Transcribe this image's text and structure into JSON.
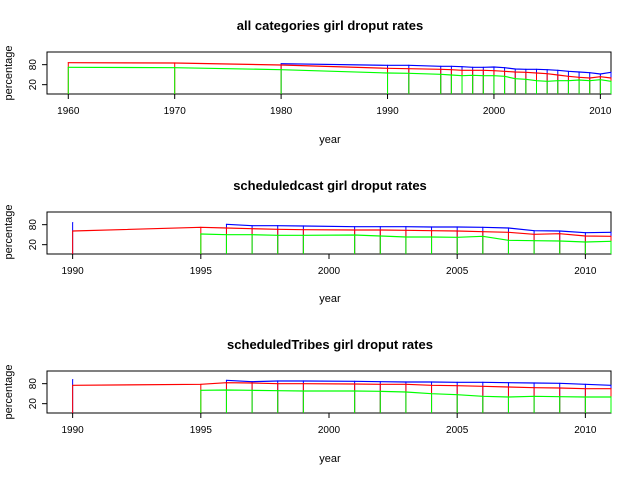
{
  "charts": [
    {
      "title": "all categories girl droput rates",
      "xlabel": "year",
      "ylabel": "percentage",
      "xlim": [
        1958,
        2011
      ],
      "ylim": [
        10,
        100
      ],
      "xticks": [
        "1960",
        "1970",
        "1980",
        "1990",
        "2000",
        "2010"
      ],
      "yticks": [
        "20",
        "80"
      ],
      "x": [
        1960,
        1970,
        1980,
        1990,
        1992,
        1995,
        1996,
        1997,
        1998,
        1999,
        2000,
        2001,
        2002,
        2003,
        2004,
        2005,
        2006,
        2007,
        2008,
        2009,
        2010,
        2011
      ],
      "series": [
        {
          "color": "#0000ff",
          "values": [
            null,
            null,
            83,
            78,
            78,
            75,
            75,
            74,
            72,
            72,
            73,
            71,
            67,
            66,
            66,
            65,
            63,
            60,
            58,
            56,
            52,
            57
          ]
        },
        {
          "color": "#ff0000",
          "values": [
            86,
            85,
            79,
            69,
            68,
            66,
            65,
            63,
            63,
            63,
            62,
            60,
            58,
            57,
            55,
            53,
            49,
            45,
            42,
            40,
            44,
            40
          ]
        },
        {
          "color": "#00ff00",
          "values": [
            72,
            71,
            65,
            55,
            54,
            51,
            49,
            47,
            48,
            47,
            47,
            45,
            38,
            36,
            32,
            30,
            32,
            32,
            34,
            32,
            35,
            30
          ]
        }
      ]
    },
    {
      "title": "scheduledcast girl droput rates",
      "xlabel": "year",
      "ylabel": "percentage",
      "xlim": [
        1989,
        2011
      ],
      "ylim": [
        10,
        100
      ],
      "xticks": [
        "1990",
        "1995",
        "2000",
        "2005",
        "2010"
      ],
      "yticks": [
        "20",
        "80"
      ],
      "x": [
        1990,
        1995,
        1996,
        1997,
        1998,
        1999,
        2001,
        2002,
        2003,
        2004,
        2005,
        2006,
        2007,
        2008,
        2009,
        2010,
        2011
      ],
      "series": [
        {
          "color": "#0000ff",
          "values": [
            86,
            null,
            81,
            77,
            77,
            76,
            74,
            74,
            74,
            73,
            73,
            72,
            70,
            62,
            61,
            56,
            57
          ]
        },
        {
          "color": "#ff0000",
          "values": [
            61,
            72,
            70,
            68,
            66,
            65,
            64,
            64,
            63,
            62,
            61,
            59,
            57,
            51,
            53,
            46,
            45
          ]
        },
        {
          "color": "#00ff00",
          "values": [
            null,
            52,
            50,
            50,
            48,
            48,
            49,
            46,
            43,
            43,
            42,
            45,
            33,
            32,
            31,
            28,
            30
          ]
        }
      ]
    },
    {
      "title": "scheduledTribes girl droput rates",
      "xlabel": "year",
      "ylabel": "percentage",
      "xlim": [
        1989,
        2011
      ],
      "ylim": [
        10,
        100
      ],
      "xticks": [
        "1990",
        "1995",
        "2000",
        "2005",
        "2010"
      ],
      "yticks": [
        "20",
        "80"
      ],
      "x": [
        1990,
        1995,
        1996,
        1997,
        1998,
        1999,
        2001,
        2002,
        2003,
        2004,
        2005,
        2006,
        2007,
        2008,
        2009,
        2010,
        2011
      ],
      "series": [
        {
          "color": "#0000ff",
          "values": [
            92,
            null,
            90,
            86,
            88,
            88,
            87,
            86,
            85,
            85,
            84,
            84,
            83,
            82,
            81,
            78,
            75
          ]
        },
        {
          "color": "#ff0000",
          "values": [
            75,
            78,
            83,
            82,
            80,
            80,
            79,
            78,
            78,
            75,
            74,
            72,
            70,
            68,
            67,
            65,
            65
          ]
        },
        {
          "color": "#00ff00",
          "values": [
            null,
            60,
            61,
            60,
            59,
            58,
            58,
            57,
            55,
            50,
            47,
            42,
            40,
            42,
            41,
            40,
            40
          ]
        }
      ]
    }
  ],
  "chart_data": [
    {
      "type": "line",
      "title": "all categories girl droput rates",
      "xlabel": "year",
      "ylabel": "percentage",
      "xlim": [
        1958,
        2011
      ],
      "ylim": [
        10,
        100
      ],
      "x": [
        1960,
        1970,
        1980,
        1990,
        1992,
        1995,
        1996,
        1997,
        1998,
        1999,
        2000,
        2001,
        2002,
        2003,
        2004,
        2005,
        2006,
        2007,
        2008,
        2009,
        2010,
        2011
      ],
      "series": [
        {
          "color": "#0000ff",
          "values": [
            null,
            null,
            83,
            78,
            78,
            75,
            75,
            74,
            72,
            72,
            73,
            71,
            67,
            66,
            66,
            65,
            63,
            60,
            58,
            56,
            52,
            57
          ]
        },
        {
          "color": "#ff0000",
          "values": [
            86,
            85,
            79,
            69,
            68,
            66,
            65,
            63,
            63,
            63,
            62,
            60,
            58,
            57,
            55,
            53,
            49,
            45,
            42,
            40,
            44,
            40
          ]
        },
        {
          "color": "#00ff00",
          "values": [
            72,
            71,
            65,
            55,
            54,
            51,
            49,
            47,
            48,
            47,
            47,
            45,
            38,
            36,
            32,
            30,
            32,
            32,
            34,
            32,
            35,
            30
          ]
        }
      ]
    },
    {
      "type": "line",
      "title": "scheduledcast girl droput rates",
      "xlabel": "year",
      "ylabel": "percentage",
      "xlim": [
        1989,
        2011
      ],
      "ylim": [
        10,
        100
      ],
      "x": [
        1990,
        1995,
        1996,
        1997,
        1998,
        1999,
        2001,
        2002,
        2003,
        2004,
        2005,
        2006,
        2007,
        2008,
        2009,
        2010,
        2011
      ],
      "series": [
        {
          "color": "#0000ff",
          "values": [
            86,
            null,
            81,
            77,
            77,
            76,
            74,
            74,
            74,
            73,
            73,
            72,
            70,
            62,
            61,
            56,
            57
          ]
        },
        {
          "color": "#ff0000",
          "values": [
            61,
            72,
            70,
            68,
            66,
            65,
            64,
            64,
            63,
            62,
            61,
            59,
            57,
            51,
            53,
            46,
            45
          ]
        },
        {
          "color": "#00ff00",
          "values": [
            null,
            52,
            50,
            50,
            48,
            48,
            49,
            46,
            43,
            43,
            42,
            45,
            33,
            32,
            31,
            28,
            30
          ]
        }
      ]
    },
    {
      "type": "line",
      "title": "scheduledTribes girl droput rates",
      "xlabel": "year",
      "ylabel": "percentage",
      "xlim": [
        1989,
        2011
      ],
      "ylim": [
        10,
        100
      ],
      "x": [
        1990,
        1995,
        1996,
        1997,
        1998,
        1999,
        2001,
        2002,
        2003,
        2004,
        2005,
        2006,
        2007,
        2008,
        2009,
        2010,
        2011
      ],
      "series": [
        {
          "color": "#0000ff",
          "values": [
            92,
            null,
            90,
            86,
            88,
            88,
            87,
            86,
            85,
            85,
            84,
            84,
            83,
            82,
            81,
            78,
            75
          ]
        },
        {
          "color": "#ff0000",
          "values": [
            75,
            78,
            83,
            82,
            80,
            80,
            79,
            78,
            78,
            75,
            74,
            72,
            70,
            68,
            67,
            65,
            65
          ]
        },
        {
          "color": "#00ff00",
          "values": [
            null,
            60,
            61,
            60,
            59,
            58,
            58,
            57,
            55,
            50,
            47,
            42,
            40,
            42,
            41,
            40,
            40
          ]
        }
      ]
    }
  ]
}
